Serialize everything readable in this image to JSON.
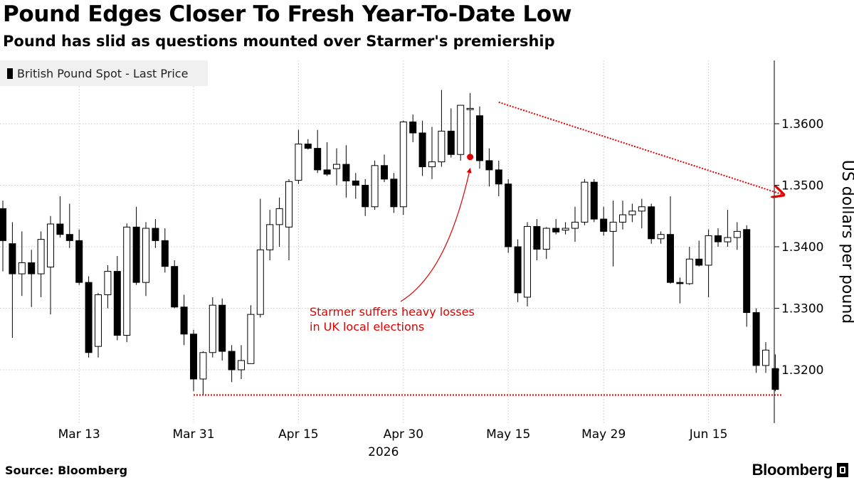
{
  "header": {
    "title": "Pound Edges Closer To Fresh Year-To-Date Low",
    "subtitle": "Pound has slid as questions mounted over Starmer's premiership"
  },
  "footer": {
    "source": "Source: Bloomberg",
    "brand": "Bloomberg"
  },
  "chart_data": {
    "type": "candlestick",
    "title": "Pound Edges Closer To Fresh Year-To-Date Low",
    "subtitle": "Pound has slid as questions mounted over Starmer's premiership",
    "ylabel": "US dollars per pound",
    "xlabel": "",
    "year_label": "2026",
    "ylim": [
      1.314,
      1.37
    ],
    "yticks": [
      1.32,
      1.33,
      1.34,
      1.35,
      1.36
    ],
    "ytick_labels": [
      "1.3200",
      "1.3300",
      "1.3400",
      "1.3500",
      "1.3600"
    ],
    "xticks": [
      {
        "label": "Mar 13",
        "index": 8
      },
      {
        "label": "Mar 31",
        "index": 20
      },
      {
        "label": "Apr 15",
        "index": 31
      },
      {
        "label": "Apr 30",
        "index": 42
      },
      {
        "label": "May 15",
        "index": 53
      },
      {
        "label": "May 29",
        "index": 63
      },
      {
        "label": "Jun 15",
        "index": 74
      }
    ],
    "legend": {
      "label": "British Pound Spot - Last Price",
      "position": "top-left"
    },
    "grid": true,
    "colors": {
      "up": "#ffffff",
      "down": "#000000",
      "annotation": "#e00000"
    },
    "series": [
      {
        "name": "British Pound Spot - Last Price",
        "candles": [
          {
            "o": 1.3462,
            "h": 1.3475,
            "l": 1.336,
            "c": 1.341
          },
          {
            "o": 1.3405,
            "h": 1.344,
            "l": 1.3252,
            "c": 1.3356
          },
          {
            "o": 1.3356,
            "h": 1.3425,
            "l": 1.332,
            "c": 1.3374
          },
          {
            "o": 1.3374,
            "h": 1.3395,
            "l": 1.3302,
            "c": 1.3356
          },
          {
            "o": 1.3356,
            "h": 1.3425,
            "l": 1.3318,
            "c": 1.3412
          },
          {
            "o": 1.3367,
            "h": 1.345,
            "l": 1.329,
            "c": 1.3437
          },
          {
            "o": 1.3437,
            "h": 1.3482,
            "l": 1.3415,
            "c": 1.342
          },
          {
            "o": 1.342,
            "h": 1.347,
            "l": 1.3398,
            "c": 1.341
          },
          {
            "o": 1.341,
            "h": 1.3428,
            "l": 1.3338,
            "c": 1.3342
          },
          {
            "o": 1.3342,
            "h": 1.3352,
            "l": 1.322,
            "c": 1.3228
          },
          {
            "o": 1.3238,
            "h": 1.3325,
            "l": 1.322,
            "c": 1.3322
          },
          {
            "o": 1.3322,
            "h": 1.337,
            "l": 1.33,
            "c": 1.336
          },
          {
            "o": 1.336,
            "h": 1.3385,
            "l": 1.3248,
            "c": 1.3256
          },
          {
            "o": 1.3256,
            "h": 1.3438,
            "l": 1.3245,
            "c": 1.3432
          },
          {
            "o": 1.3432,
            "h": 1.3465,
            "l": 1.3338,
            "c": 1.3342
          },
          {
            "o": 1.3342,
            "h": 1.344,
            "l": 1.332,
            "c": 1.343
          },
          {
            "o": 1.343,
            "h": 1.3445,
            "l": 1.3398,
            "c": 1.341
          },
          {
            "o": 1.341,
            "h": 1.343,
            "l": 1.3358,
            "c": 1.3368
          },
          {
            "o": 1.3368,
            "h": 1.3378,
            "l": 1.33,
            "c": 1.3302
          },
          {
            "o": 1.3302,
            "h": 1.3322,
            "l": 1.324,
            "c": 1.3258
          },
          {
            "o": 1.3258,
            "h": 1.3265,
            "l": 1.3165,
            "c": 1.3185
          },
          {
            "o": 1.3185,
            "h": 1.323,
            "l": 1.316,
            "c": 1.3228
          },
          {
            "o": 1.3228,
            "h": 1.3318,
            "l": 1.322,
            "c": 1.3305
          },
          {
            "o": 1.3305,
            "h": 1.3316,
            "l": 1.3215,
            "c": 1.323
          },
          {
            "o": 1.323,
            "h": 1.324,
            "l": 1.318,
            "c": 1.32
          },
          {
            "o": 1.32,
            "h": 1.324,
            "l": 1.3185,
            "c": 1.3215
          },
          {
            "o": 1.321,
            "h": 1.3305,
            "l": 1.321,
            "c": 1.329
          },
          {
            "o": 1.329,
            "h": 1.3478,
            "l": 1.3285,
            "c": 1.3395
          },
          {
            "o": 1.3395,
            "h": 1.346,
            "l": 1.3378,
            "c": 1.3436
          },
          {
            "o": 1.3436,
            "h": 1.348,
            "l": 1.34,
            "c": 1.3462
          },
          {
            "o": 1.3432,
            "h": 1.351,
            "l": 1.3378,
            "c": 1.3506
          },
          {
            "o": 1.3508,
            "h": 1.359,
            "l": 1.3502,
            "c": 1.3567
          },
          {
            "o": 1.3567,
            "h": 1.3575,
            "l": 1.3558,
            "c": 1.356
          },
          {
            "o": 1.356,
            "h": 1.359,
            "l": 1.352,
            "c": 1.3525
          },
          {
            "o": 1.3525,
            "h": 1.357,
            "l": 1.3515,
            "c": 1.3518
          },
          {
            "o": 1.3527,
            "h": 1.356,
            "l": 1.35,
            "c": 1.3534
          },
          {
            "o": 1.3534,
            "h": 1.3565,
            "l": 1.348,
            "c": 1.3507
          },
          {
            "o": 1.3507,
            "h": 1.352,
            "l": 1.3478,
            "c": 1.35
          },
          {
            "o": 1.35,
            "h": 1.351,
            "l": 1.345,
            "c": 1.3465
          },
          {
            "o": 1.3465,
            "h": 1.354,
            "l": 1.346,
            "c": 1.3532
          },
          {
            "o": 1.3532,
            "h": 1.355,
            "l": 1.3505,
            "c": 1.351
          },
          {
            "o": 1.351,
            "h": 1.352,
            "l": 1.3455,
            "c": 1.3465
          },
          {
            "o": 1.3465,
            "h": 1.3605,
            "l": 1.3452,
            "c": 1.3603
          },
          {
            "o": 1.3603,
            "h": 1.3615,
            "l": 1.357,
            "c": 1.3585
          },
          {
            "o": 1.3585,
            "h": 1.3605,
            "l": 1.3515,
            "c": 1.353
          },
          {
            "o": 1.353,
            "h": 1.3595,
            "l": 1.351,
            "c": 1.3538
          },
          {
            "o": 1.3538,
            "h": 1.3655,
            "l": 1.353,
            "c": 1.3588
          },
          {
            "o": 1.3588,
            "h": 1.3625,
            "l": 1.3545,
            "c": 1.355
          },
          {
            "o": 1.355,
            "h": 1.363,
            "l": 1.354,
            "c": 1.363
          },
          {
            "o": 1.3623,
            "h": 1.365,
            "l": 1.3545,
            "c": 1.3625
          },
          {
            "o": 1.3613,
            "h": 1.3628,
            "l": 1.3527,
            "c": 1.354
          },
          {
            "o": 1.354,
            "h": 1.356,
            "l": 1.3498,
            "c": 1.3525
          },
          {
            "o": 1.3525,
            "h": 1.354,
            "l": 1.3482,
            "c": 1.3502
          },
          {
            "o": 1.3502,
            "h": 1.351,
            "l": 1.339,
            "c": 1.34
          },
          {
            "o": 1.34,
            "h": 1.3412,
            "l": 1.331,
            "c": 1.3325
          },
          {
            "o": 1.3318,
            "h": 1.344,
            "l": 1.3303,
            "c": 1.3433
          },
          {
            "o": 1.3433,
            "h": 1.3445,
            "l": 1.3378,
            "c": 1.3396
          },
          {
            "o": 1.3396,
            "h": 1.3432,
            "l": 1.338,
            "c": 1.343
          },
          {
            "o": 1.343,
            "h": 1.3445,
            "l": 1.342,
            "c": 1.3424
          },
          {
            "o": 1.3427,
            "h": 1.344,
            "l": 1.342,
            "c": 1.343
          },
          {
            "o": 1.343,
            "h": 1.3465,
            "l": 1.3408,
            "c": 1.344
          },
          {
            "o": 1.344,
            "h": 1.351,
            "l": 1.3435,
            "c": 1.3505
          },
          {
            "o": 1.3505,
            "h": 1.351,
            "l": 1.344,
            "c": 1.3445
          },
          {
            "o": 1.3445,
            "h": 1.3465,
            "l": 1.3418,
            "c": 1.3425
          },
          {
            "o": 1.3425,
            "h": 1.3475,
            "l": 1.3368,
            "c": 1.344
          },
          {
            "o": 1.344,
            "h": 1.3475,
            "l": 1.3428,
            "c": 1.3452
          },
          {
            "o": 1.3452,
            "h": 1.347,
            "l": 1.344,
            "c": 1.3458
          },
          {
            "o": 1.3458,
            "h": 1.3478,
            "l": 1.343,
            "c": 1.3465
          },
          {
            "o": 1.3465,
            "h": 1.347,
            "l": 1.3405,
            "c": 1.3413
          },
          {
            "o": 1.3413,
            "h": 1.3425,
            "l": 1.3405,
            "c": 1.342
          },
          {
            "o": 1.342,
            "h": 1.3482,
            "l": 1.334,
            "c": 1.3342
          },
          {
            "o": 1.3342,
            "h": 1.335,
            "l": 1.3308,
            "c": 1.334
          },
          {
            "o": 1.334,
            "h": 1.34,
            "l": 1.3338,
            "c": 1.338
          },
          {
            "o": 1.338,
            "h": 1.341,
            "l": 1.3368,
            "c": 1.337
          },
          {
            "o": 1.337,
            "h": 1.3428,
            "l": 1.3318,
            "c": 1.3418
          },
          {
            "o": 1.3418,
            "h": 1.343,
            "l": 1.34,
            "c": 1.3408
          },
          {
            "o": 1.3408,
            "h": 1.346,
            "l": 1.34,
            "c": 1.3415
          },
          {
            "o": 1.3415,
            "h": 1.344,
            "l": 1.3395,
            "c": 1.3425
          },
          {
            "o": 1.3428,
            "h": 1.3435,
            "l": 1.327,
            "c": 1.3293
          },
          {
            "o": 1.3293,
            "h": 1.33,
            "l": 1.3195,
            "c": 1.3207
          },
          {
            "o": 1.3207,
            "h": 1.3245,
            "l": 1.3195,
            "c": 1.3232
          },
          {
            "o": 1.3202,
            "h": 1.3225,
            "l": 1.3165,
            "c": 1.3168
          }
        ]
      }
    ],
    "reference_lines": [
      {
        "type": "horizontal-dotted",
        "y": 1.3159,
        "from_index": 20,
        "to_index": 81
      }
    ],
    "trend_arrow": {
      "from": {
        "index": 52,
        "y": 1.3635
      },
      "to": {
        "index": 81,
        "y": 1.3485
      }
    },
    "annotation": {
      "text_line1": "Starmer suffers heavy losses",
      "text_line2": "in UK local elections",
      "point": {
        "index": 49,
        "y": 1.3546
      }
    }
  }
}
